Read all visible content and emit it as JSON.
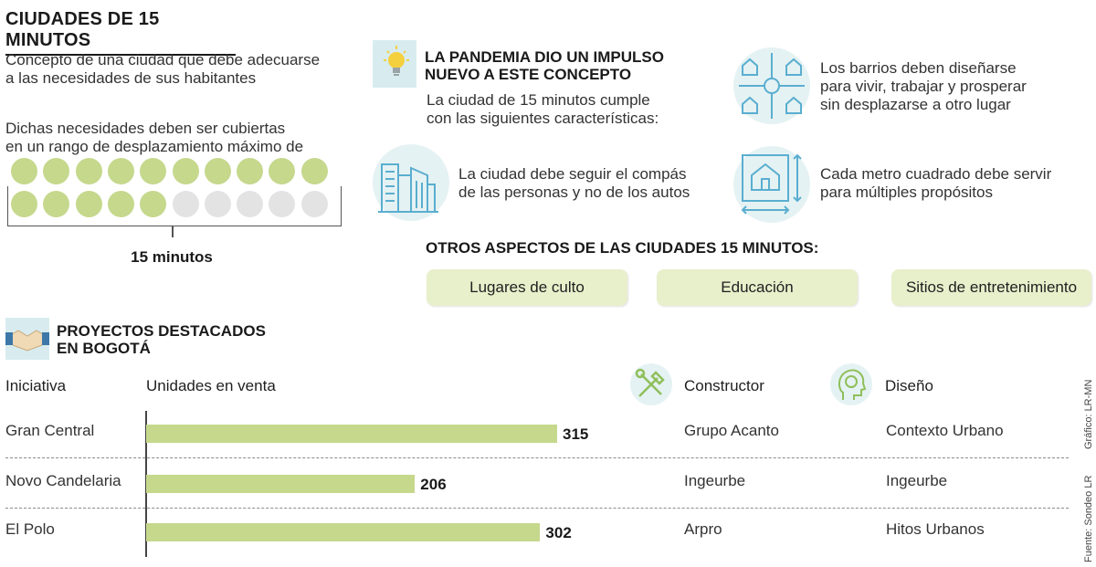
{
  "header": {
    "title": "CIUDADES DE 15 MINUTOS",
    "concept": [
      "Concepto de una ciudad que debe adecuarse",
      "a las necesidades de sus habitantes"
    ],
    "needs": [
      "Dichas necesidades deben ser cubiertas",
      "en un rango de desplazamiento máximo de"
    ],
    "minutes_label": "15 minutos"
  },
  "minutes_graphic": {
    "total": 20,
    "filled": 15,
    "filled_color": "#c5d88c",
    "empty_color": "#e3e3e3"
  },
  "pandemic": {
    "title": [
      "LA PANDEMIA DIO UN IMPULSO",
      "NUEVO A ESTE CONCEPTO"
    ],
    "intro": [
      "La ciudad de 15 minutos cumple",
      "con las siguientes características:"
    ]
  },
  "characteristics": [
    {
      "icon": "buildings-icon",
      "lines": [
        "La ciudad debe seguir el compás",
        "de las personas y no de los autos"
      ]
    },
    {
      "icon": "neighborhood-icon",
      "lines": [
        "Los barrios deben diseñarse",
        "para vivir, trabajar y prosperar",
        "sin desplazarse a otro lugar"
      ]
    },
    {
      "icon": "square-meter-house-icon",
      "lines": [
        "Cada metro cuadrado debe servir",
        "para múltiples propósitos"
      ]
    }
  ],
  "other_aspects": {
    "title": "OTROS ASPECTOS DE LAS CIUDADES 15 MINUTOS:",
    "items": [
      "Lugares de culto",
      "Educación",
      "Sitios de entretenimiento"
    ]
  },
  "projects": {
    "title": [
      "PROYECTOS DESTACADOS",
      "EN BOGOTÁ"
    ],
    "columns": {
      "initiative": "Iniciativa",
      "units": "Unidades en venta",
      "builder": "Constructor",
      "design": "Diseño"
    }
  },
  "chart_data": {
    "type": "bar",
    "orientation": "horizontal",
    "categories": [
      "Gran Central",
      "Novo Candelaria",
      "El Polo"
    ],
    "values": [
      315,
      206,
      302
    ],
    "builders": [
      "Grupo Acanto",
      "Ingeurbe",
      "Arpro"
    ],
    "designers": [
      "Contexto Urbano",
      "Ingeurbe",
      "Hitos Urbanos"
    ],
    "bar_color": "#c5d88c",
    "xlim": [
      0,
      315
    ]
  },
  "credits": {
    "graphic": "Gráfico: LR-MN",
    "source": "Fuente: Sondeo LR"
  },
  "colors": {
    "accent_green": "#c5d88c",
    "icon_blue": "#5aaed0",
    "icon_bg": "#e5f2f3"
  }
}
